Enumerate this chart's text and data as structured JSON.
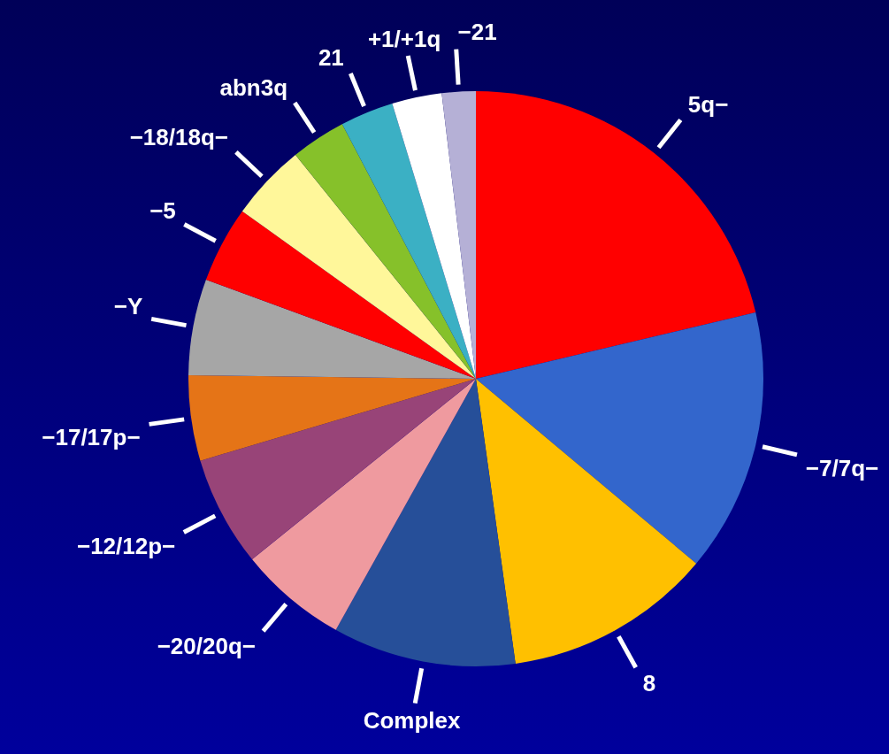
{
  "chart_data": {
    "type": "pie",
    "categories": [
      "5q−",
      "−7/7q−",
      "8",
      "Complex",
      "−20/20q−",
      "−12/12p−",
      "−17/17p−",
      "−Y",
      "−5",
      "−18/18q−",
      "abn3q",
      "21",
      "+1/+1q",
      "−21"
    ],
    "values": [
      21.3,
      14.8,
      11.7,
      10.3,
      6.1,
      6.2,
      4.8,
      5.4,
      4.3,
      4.3,
      3.1,
      3.0,
      2.8,
      1.9
    ],
    "colors": [
      "#ff0000",
      "#3366cc",
      "#ffc000",
      "#264f99",
      "#ef9a9f",
      "#984478",
      "#e57417",
      "#a6a6a6",
      "#ff0000",
      "#fff79a",
      "#86c12a",
      "#3bb0c4",
      "#ffffff",
      "#b5b0d6"
    ],
    "legend": false
  }
}
